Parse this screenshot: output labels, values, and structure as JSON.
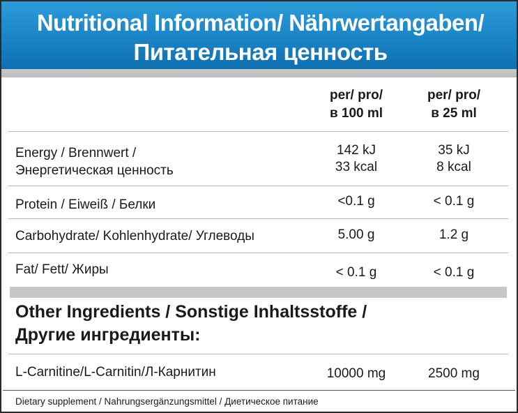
{
  "header": {
    "title_line1": "Nutritional Information/ Nährwertangaben/",
    "title_line2": "Питательная ценность"
  },
  "columns": {
    "per100_line1": "per/ pro/",
    "per100_line2": "в 100 ml",
    "per25_line1": "per/ pro/",
    "per25_line2": "в 25 ml"
  },
  "rows": {
    "energy": {
      "label_line1": "Energy / Brennwert /",
      "label_line2": "Энергетическая ценность",
      "per100_line1": "142 kJ",
      "per100_line2": "33 kcal",
      "per25_line1": "35 kJ",
      "per25_line2": "8 kcal"
    },
    "protein": {
      "label": "Protein / Eiweiß / Белки",
      "per100": "<0.1 g",
      "per25": "< 0.1 g"
    },
    "carbohydrate": {
      "label": "Carbohydrate/ Kohlenhydrate/ Углеводы",
      "per100": "5.00 g",
      "per25": "1.2 g"
    },
    "fat": {
      "label": "Fat/ Fett/ Жиры",
      "per100": "< 0.1 g",
      "per25": "< 0.1 g"
    }
  },
  "other": {
    "title_line1": "Other Ingredients / Sonstige Inhaltsstoffe /",
    "title_line2": "Другие ингредиенты:",
    "carnitine": {
      "label": "L-Carnitine/L-Carnitin/Л-Карнитин",
      "per100": "10000 mg",
      "per25": "2500 mg"
    }
  },
  "footer": {
    "note": "Dietary supplement / Nahrungsergänzungsmittel / Диетическое питание"
  }
}
